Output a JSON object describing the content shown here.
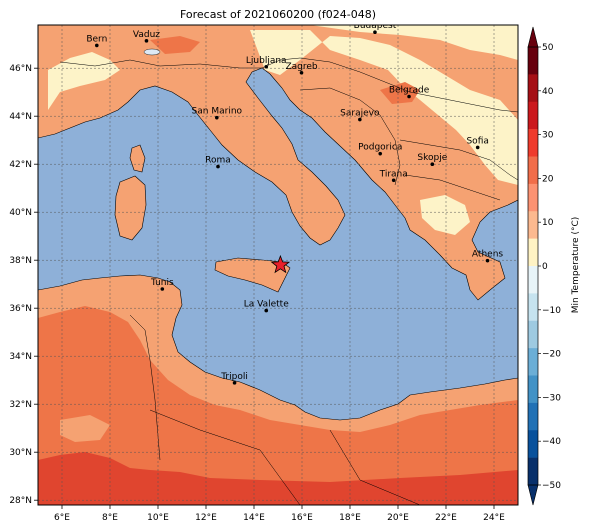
{
  "title": "Forecast of 2021060200 (f024-048)",
  "map": {
    "lon_range": [
      5,
      25
    ],
    "lat_range": [
      27.8,
      47.8
    ],
    "lon_ticks": [
      "6°E",
      "8°E",
      "10°E",
      "12°E",
      "14°E",
      "16°E",
      "18°E",
      "20°E",
      "22°E",
      "24°E"
    ],
    "lat_ticks": [
      "28°N",
      "30°N",
      "32°N",
      "34°N",
      "36°N",
      "38°N",
      "40°N",
      "42°N",
      "44°N",
      "46°N"
    ],
    "grid": true,
    "marker": {
      "type": "star",
      "lon": 15.1,
      "lat": 37.8,
      "color": "#e8202a"
    },
    "cities": [
      {
        "name": "Bern",
        "lon": 7.45,
        "lat": 46.95
      },
      {
        "name": "Vaduz",
        "lon": 9.52,
        "lat": 47.14
      },
      {
        "name": "Budapest",
        "lon": 19.04,
        "lat": 47.5
      },
      {
        "name": "Ljubljana",
        "lon": 14.51,
        "lat": 46.06
      },
      {
        "name": "Zagreb",
        "lon": 15.98,
        "lat": 45.81
      },
      {
        "name": "Belgrade",
        "lon": 20.46,
        "lat": 44.82
      },
      {
        "name": "San Marino",
        "lon": 12.45,
        "lat": 43.94
      },
      {
        "name": "Sarajevo",
        "lon": 18.41,
        "lat": 43.86
      },
      {
        "name": "Sofia",
        "lon": 23.32,
        "lat": 42.7
      },
      {
        "name": "Podgorica",
        "lon": 19.26,
        "lat": 42.44
      },
      {
        "name": "Skopje",
        "lon": 21.43,
        "lat": 42.0
      },
      {
        "name": "Roma",
        "lon": 12.5,
        "lat": 41.9
      },
      {
        "name": "Tirana",
        "lon": 19.82,
        "lat": 41.33
      },
      {
        "name": "Athens",
        "lon": 23.73,
        "lat": 37.98
      },
      {
        "name": "Tunis",
        "lon": 10.18,
        "lat": 36.8
      },
      {
        "name": "La Valette",
        "lon": 14.51,
        "lat": 35.9
      },
      {
        "name": "Tripoli",
        "lon": 13.19,
        "lat": 32.89
      }
    ]
  },
  "colorbar": {
    "label": "Min Temperature (°C)",
    "ticks": [
      "50",
      "40",
      "30",
      "20",
      "10",
      "0",
      "−10",
      "−20",
      "−30",
      "−40",
      "−50"
    ],
    "colors_top_to_bottom": [
      "#67000d",
      "#a50f15",
      "#cb181d",
      "#ef3b2c",
      "#f16d4a",
      "#fc9272",
      "#fcb98f",
      "#fff3c4",
      "#e8f4f8",
      "#c6e3ef",
      "#9ecae1",
      "#6baed6",
      "#4292c6",
      "#2171b5",
      "#08519c",
      "#08306b"
    ]
  },
  "palette": {
    "sea": "#8eb0d8",
    "warm_10_20": "#f5a272",
    "warm_20_30": "#ee7548",
    "warm_30_40": "#e0452f",
    "cool_0_10": "#fdf3c8",
    "cold": "#dde9f5"
  }
}
